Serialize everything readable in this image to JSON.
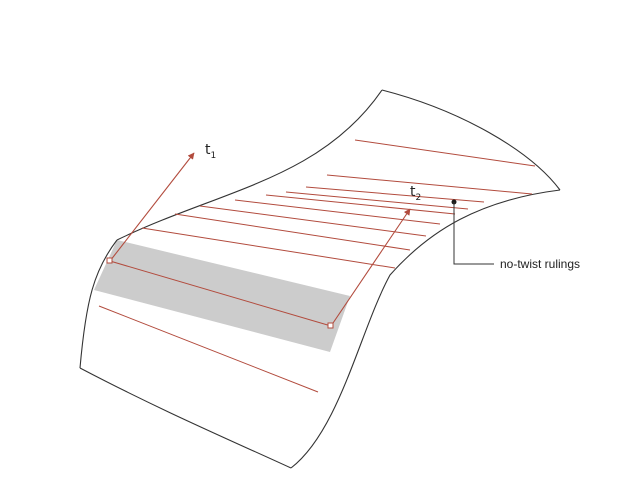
{
  "diagram": {
    "labels": {
      "t1": "t",
      "t1_sub": "1",
      "t2": "t",
      "t2_sub": "2",
      "callout": "no-twist rulings"
    },
    "colors": {
      "surface_edge": "#333333",
      "ruling": "#b24b3d",
      "band": "#cccccc",
      "tangent": "#b24b3d",
      "marker": "#1a1a1a"
    }
  }
}
